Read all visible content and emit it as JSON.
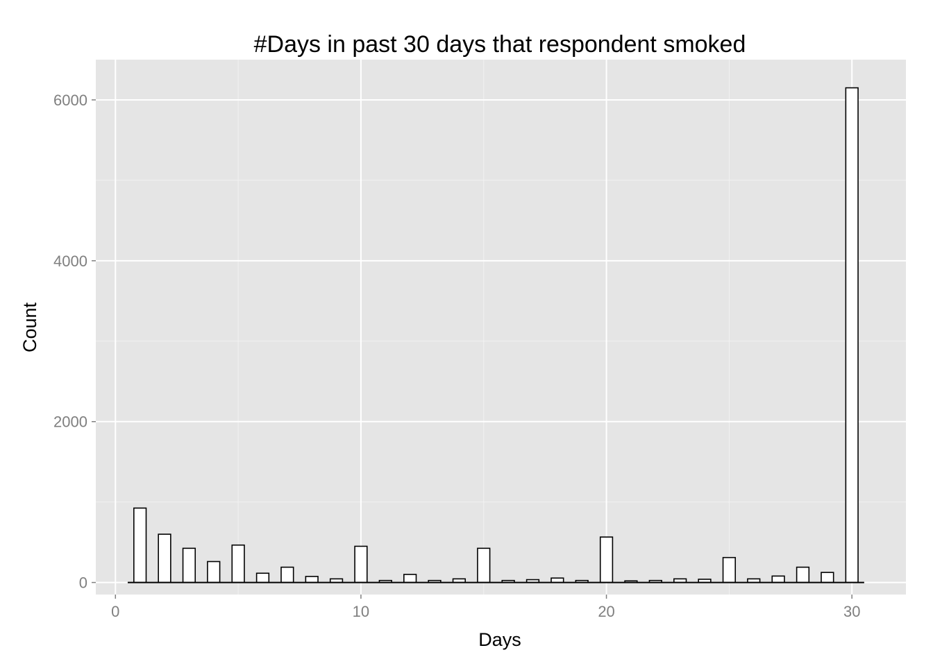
{
  "chart_data": {
    "type": "bar",
    "title": "#Days in past 30 days that respondent smoked",
    "xlabel": "Days",
    "ylabel": "Count",
    "x": [
      1,
      2,
      3,
      4,
      5,
      6,
      7,
      8,
      9,
      10,
      11,
      12,
      13,
      14,
      15,
      16,
      17,
      18,
      19,
      20,
      21,
      22,
      23,
      24,
      25,
      26,
      27,
      28,
      29,
      30
    ],
    "values": [
      925,
      600,
      425,
      260,
      465,
      115,
      190,
      75,
      45,
      450,
      25,
      100,
      25,
      45,
      425,
      25,
      35,
      55,
      25,
      565,
      20,
      25,
      45,
      40,
      310,
      45,
      80,
      190,
      125,
      6150
    ],
    "xlim": [
      -0.8,
      32.2
    ],
    "ylim": [
      -150,
      6500
    ],
    "xticks": [
      0,
      10,
      20,
      30
    ],
    "yticks": [
      0,
      2000,
      4000,
      6000
    ],
    "xtick_labels": [
      "0",
      "10",
      "20",
      "30"
    ],
    "ytick_labels": [
      "0",
      "2000",
      "4000",
      "6000"
    ],
    "grid": true,
    "legend": "none",
    "colors": {
      "panel_background": "#e5e5e5",
      "grid_major": "#ffffff",
      "grid_minor": "#f2f2f2",
      "bar_fill": "#ffffff",
      "bar_outline": "#000000",
      "tick_text": "#7f7f7f"
    }
  }
}
